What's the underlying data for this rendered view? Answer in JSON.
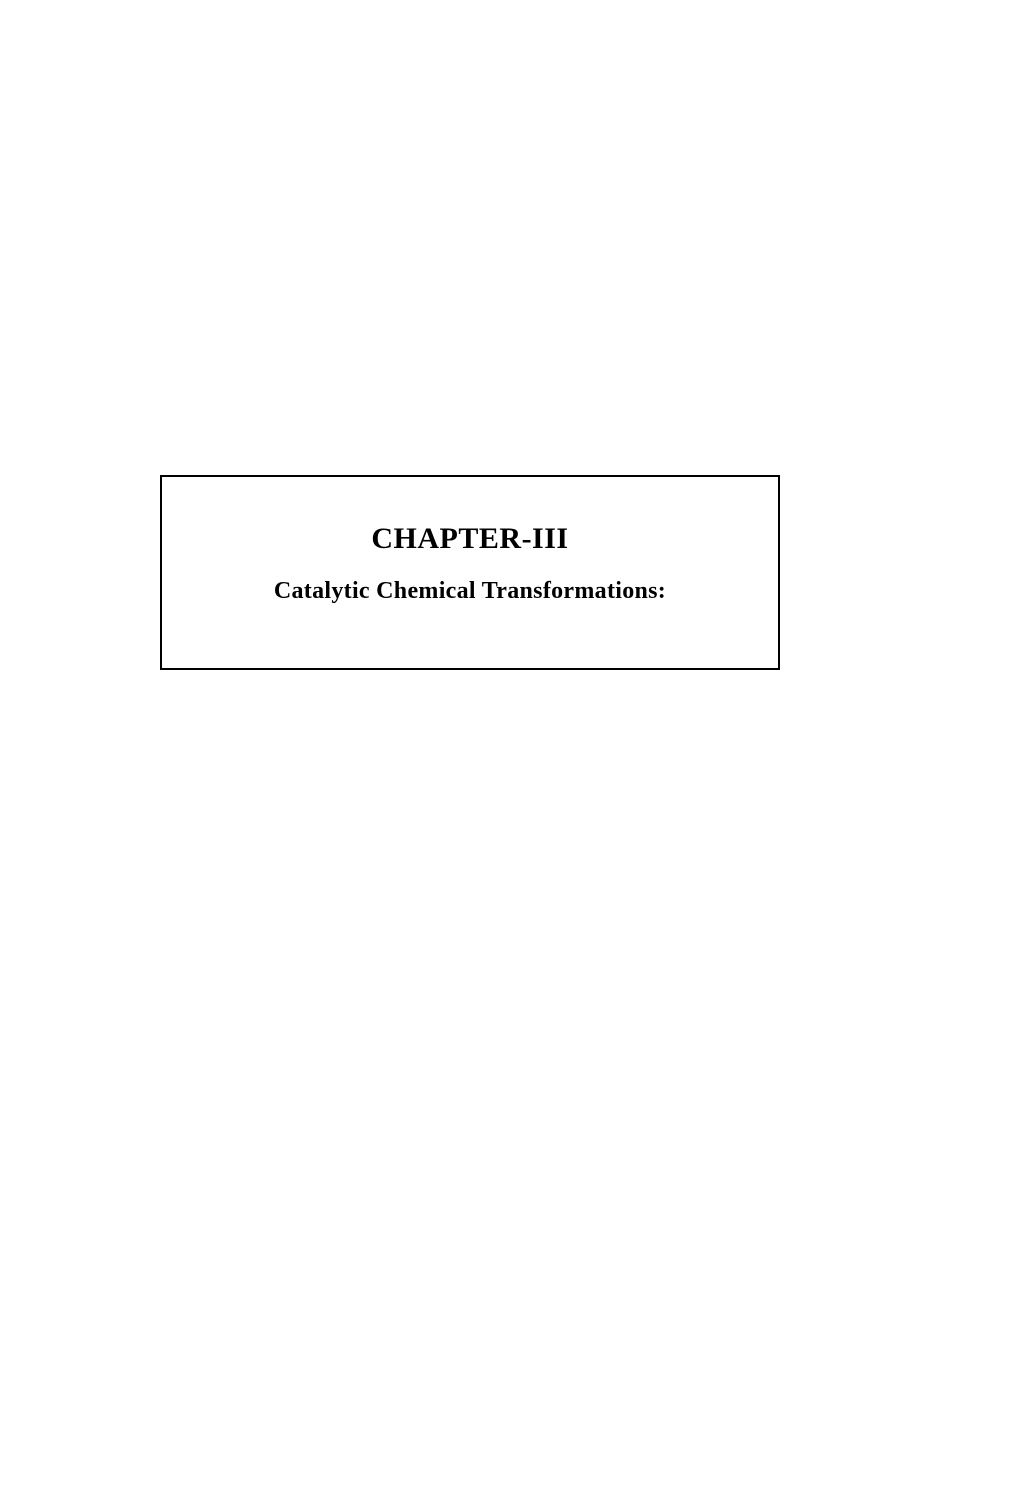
{
  "document": {
    "chapter_title": "CHAPTER-III",
    "chapter_subtitle": "Catalytic Chemical Transformations:",
    "box_border_color": "#000000",
    "box_border_width": 2,
    "background_color": "#ffffff",
    "text_color": "#000000",
    "title_fontsize": 30,
    "subtitle_fontsize": 24,
    "font_family": "Times New Roman"
  }
}
